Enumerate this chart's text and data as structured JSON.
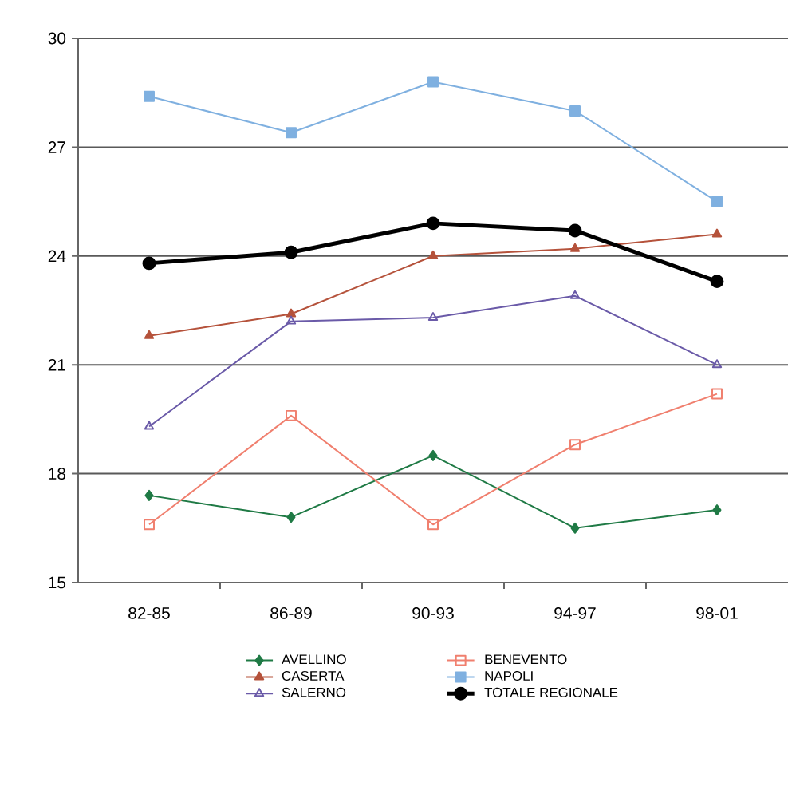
{
  "chart_data": {
    "type": "line",
    "categories": [
      "82-85",
      "86-89",
      "90-93",
      "94-97",
      "98-01"
    ],
    "ylim": [
      15,
      30
    ],
    "yticks": [
      15,
      18,
      21,
      24,
      27,
      30
    ],
    "grid": "y",
    "legend": "bottom",
    "series": [
      {
        "name": "AVELLINO",
        "color": "#1f7a45",
        "marker": "diamond",
        "values": [
          17.4,
          16.8,
          18.5,
          16.5,
          17.0
        ]
      },
      {
        "name": "BENEVENTO",
        "color": "#f07f6e",
        "marker": "square",
        "values": [
          16.6,
          19.6,
          16.6,
          18.8,
          20.2
        ]
      },
      {
        "name": "CASERTA",
        "color": "#b5523b",
        "marker": "triangle",
        "values": [
          21.8,
          22.4,
          24.0,
          24.2,
          24.6
        ]
      },
      {
        "name": "NAPOLI",
        "color": "#7fb0e0",
        "marker": "square",
        "values": [
          28.4,
          27.4,
          28.8,
          28.0,
          25.5
        ]
      },
      {
        "name": "SALERNO",
        "color": "#6a5aa8",
        "marker": "triangle",
        "values": [
          19.3,
          22.2,
          22.3,
          22.9,
          21.0
        ]
      },
      {
        "name": "TOTALE REGIONALE",
        "color": "#000000",
        "marker": "circle",
        "values": [
          23.8,
          24.1,
          24.9,
          24.7,
          23.3
        ]
      }
    ]
  }
}
